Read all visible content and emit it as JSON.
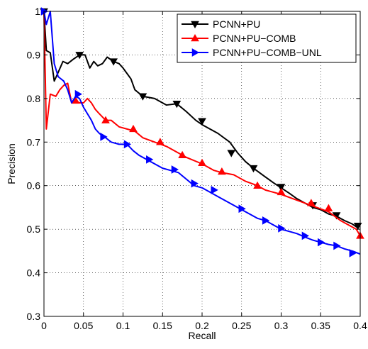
{
  "chart_data": {
    "type": "line",
    "title": "",
    "xlabel": "Recall",
    "ylabel": "Precision",
    "xlim": [
      0,
      0.4
    ],
    "ylim": [
      0.3,
      1.0
    ],
    "xticks": [
      "0",
      "0.05",
      "0.1",
      "0.15",
      "0.2",
      "0.25",
      "0.3",
      "0.35",
      "0.4"
    ],
    "yticks": [
      "0.3",
      "0.4",
      "0.5",
      "0.6",
      "0.7",
      "0.8",
      "0.9",
      "1"
    ],
    "grid": true,
    "legend_position": "top-right",
    "series": [
      {
        "name": "PCNN+PU",
        "color": "#000000",
        "marker": "triangle-down",
        "points": [
          [
            0,
            1.0
          ],
          [
            0.003,
            0.91
          ],
          [
            0.008,
            0.905
          ],
          [
            0.013,
            0.84
          ],
          [
            0.018,
            0.86
          ],
          [
            0.024,
            0.885
          ],
          [
            0.03,
            0.88
          ],
          [
            0.037,
            0.89
          ],
          [
            0.045,
            0.9
          ],
          [
            0.052,
            0.9
          ],
          [
            0.058,
            0.87
          ],
          [
            0.063,
            0.885
          ],
          [
            0.068,
            0.875
          ],
          [
            0.074,
            0.88
          ],
          [
            0.08,
            0.895
          ],
          [
            0.088,
            0.885
          ],
          [
            0.095,
            0.88
          ],
          [
            0.1,
            0.87
          ],
          [
            0.11,
            0.845
          ],
          [
            0.115,
            0.82
          ],
          [
            0.125,
            0.805
          ],
          [
            0.14,
            0.8
          ],
          [
            0.155,
            0.785
          ],
          [
            0.168,
            0.788
          ],
          [
            0.18,
            0.77
          ],
          [
            0.192,
            0.75
          ],
          [
            0.2,
            0.74
          ],
          [
            0.21,
            0.73
          ],
          [
            0.22,
            0.72
          ],
          [
            0.235,
            0.7
          ],
          [
            0.245,
            0.675
          ],
          [
            0.255,
            0.655
          ],
          [
            0.265,
            0.64
          ],
          [
            0.28,
            0.62
          ],
          [
            0.29,
            0.607
          ],
          [
            0.3,
            0.595
          ],
          [
            0.31,
            0.583
          ],
          [
            0.32,
            0.57
          ],
          [
            0.33,
            0.56
          ],
          [
            0.34,
            0.55
          ],
          [
            0.35,
            0.545
          ],
          [
            0.36,
            0.535
          ],
          [
            0.37,
            0.53
          ],
          [
            0.38,
            0.52
          ],
          [
            0.39,
            0.512
          ],
          [
            0.398,
            0.502
          ]
        ],
        "marker_points": [
          [
            0,
            1.0
          ],
          [
            0.045,
            0.9
          ],
          [
            0.088,
            0.885
          ],
          [
            0.125,
            0.805
          ],
          [
            0.168,
            0.788
          ],
          [
            0.2,
            0.748
          ],
          [
            0.237,
            0.675
          ],
          [
            0.265,
            0.64
          ],
          [
            0.3,
            0.597
          ],
          [
            0.34,
            0.555
          ],
          [
            0.37,
            0.532
          ],
          [
            0.397,
            0.508
          ]
        ]
      },
      {
        "name": "PCNN+PU−COMB",
        "color": "#ff0000",
        "marker": "triangle-up",
        "points": [
          [
            0,
            1.0
          ],
          [
            0.003,
            0.73
          ],
          [
            0.008,
            0.81
          ],
          [
            0.015,
            0.805
          ],
          [
            0.02,
            0.82
          ],
          [
            0.025,
            0.83
          ],
          [
            0.03,
            0.835
          ],
          [
            0.035,
            0.79
          ],
          [
            0.04,
            0.795
          ],
          [
            0.045,
            0.79
          ],
          [
            0.05,
            0.79
          ],
          [
            0.055,
            0.8
          ],
          [
            0.06,
            0.79
          ],
          [
            0.065,
            0.775
          ],
          [
            0.07,
            0.765
          ],
          [
            0.078,
            0.75
          ],
          [
            0.085,
            0.75
          ],
          [
            0.095,
            0.735
          ],
          [
            0.105,
            0.73
          ],
          [
            0.115,
            0.725
          ],
          [
            0.125,
            0.71
          ],
          [
            0.14,
            0.7
          ],
          [
            0.155,
            0.69
          ],
          [
            0.17,
            0.675
          ],
          [
            0.18,
            0.665
          ],
          [
            0.2,
            0.65
          ],
          [
            0.215,
            0.635
          ],
          [
            0.225,
            0.63
          ],
          [
            0.24,
            0.625
          ],
          [
            0.255,
            0.61
          ],
          [
            0.27,
            0.6
          ],
          [
            0.28,
            0.59
          ],
          [
            0.3,
            0.58
          ],
          [
            0.315,
            0.57
          ],
          [
            0.33,
            0.56
          ],
          [
            0.345,
            0.55
          ],
          [
            0.36,
            0.54
          ],
          [
            0.375,
            0.52
          ],
          [
            0.385,
            0.51
          ],
          [
            0.395,
            0.5
          ],
          [
            0.4,
            0.485
          ]
        ],
        "marker_points": [
          [
            0.04,
            0.795
          ],
          [
            0.078,
            0.75
          ],
          [
            0.113,
            0.73
          ],
          [
            0.147,
            0.7
          ],
          [
            0.175,
            0.67
          ],
          [
            0.2,
            0.652
          ],
          [
            0.225,
            0.632
          ],
          [
            0.27,
            0.6
          ],
          [
            0.3,
            0.585
          ],
          [
            0.338,
            0.56
          ],
          [
            0.36,
            0.548
          ],
          [
            0.4,
            0.485
          ]
        ]
      },
      {
        "name": "PCNN+PU−COMB−UNL",
        "color": "#0000ff",
        "marker": "triangle-right",
        "points": [
          [
            0,
            1.0
          ],
          [
            0.003,
            0.97
          ],
          [
            0.008,
            1.0
          ],
          [
            0.013,
            0.88
          ],
          [
            0.018,
            0.85
          ],
          [
            0.025,
            0.84
          ],
          [
            0.03,
            0.82
          ],
          [
            0.035,
            0.79
          ],
          [
            0.04,
            0.805
          ],
          [
            0.045,
            0.8
          ],
          [
            0.05,
            0.78
          ],
          [
            0.055,
            0.765
          ],
          [
            0.06,
            0.75
          ],
          [
            0.065,
            0.73
          ],
          [
            0.07,
            0.72
          ],
          [
            0.078,
            0.71
          ],
          [
            0.085,
            0.7
          ],
          [
            0.095,
            0.695
          ],
          [
            0.105,
            0.695
          ],
          [
            0.113,
            0.68
          ],
          [
            0.12,
            0.67
          ],
          [
            0.13,
            0.66
          ],
          [
            0.14,
            0.65
          ],
          [
            0.15,
            0.64
          ],
          [
            0.16,
            0.635
          ],
          [
            0.17,
            0.63
          ],
          [
            0.18,
            0.615
          ],
          [
            0.19,
            0.6
          ],
          [
            0.2,
            0.595
          ],
          [
            0.21,
            0.585
          ],
          [
            0.22,
            0.575
          ],
          [
            0.23,
            0.565
          ],
          [
            0.24,
            0.555
          ],
          [
            0.25,
            0.545
          ],
          [
            0.26,
            0.535
          ],
          [
            0.27,
            0.525
          ],
          [
            0.28,
            0.52
          ],
          [
            0.29,
            0.51
          ],
          [
            0.3,
            0.5
          ],
          [
            0.31,
            0.495
          ],
          [
            0.32,
            0.49
          ],
          [
            0.33,
            0.482
          ],
          [
            0.34,
            0.475
          ],
          [
            0.35,
            0.47
          ],
          [
            0.36,
            0.465
          ],
          [
            0.37,
            0.462
          ],
          [
            0.38,
            0.455
          ],
          [
            0.39,
            0.45
          ],
          [
            0.4,
            0.443
          ]
        ],
        "marker_points": [
          [
            0,
            1.0
          ],
          [
            0.043,
            0.81
          ],
          [
            0.075,
            0.712
          ],
          [
            0.105,
            0.695
          ],
          [
            0.133,
            0.66
          ],
          [
            0.165,
            0.637
          ],
          [
            0.19,
            0.605
          ],
          [
            0.215,
            0.59
          ],
          [
            0.25,
            0.547
          ],
          [
            0.28,
            0.52
          ],
          [
            0.3,
            0.502
          ],
          [
            0.33,
            0.485
          ],
          [
            0.35,
            0.47
          ],
          [
            0.37,
            0.462
          ],
          [
            0.39,
            0.445
          ]
        ]
      }
    ]
  }
}
